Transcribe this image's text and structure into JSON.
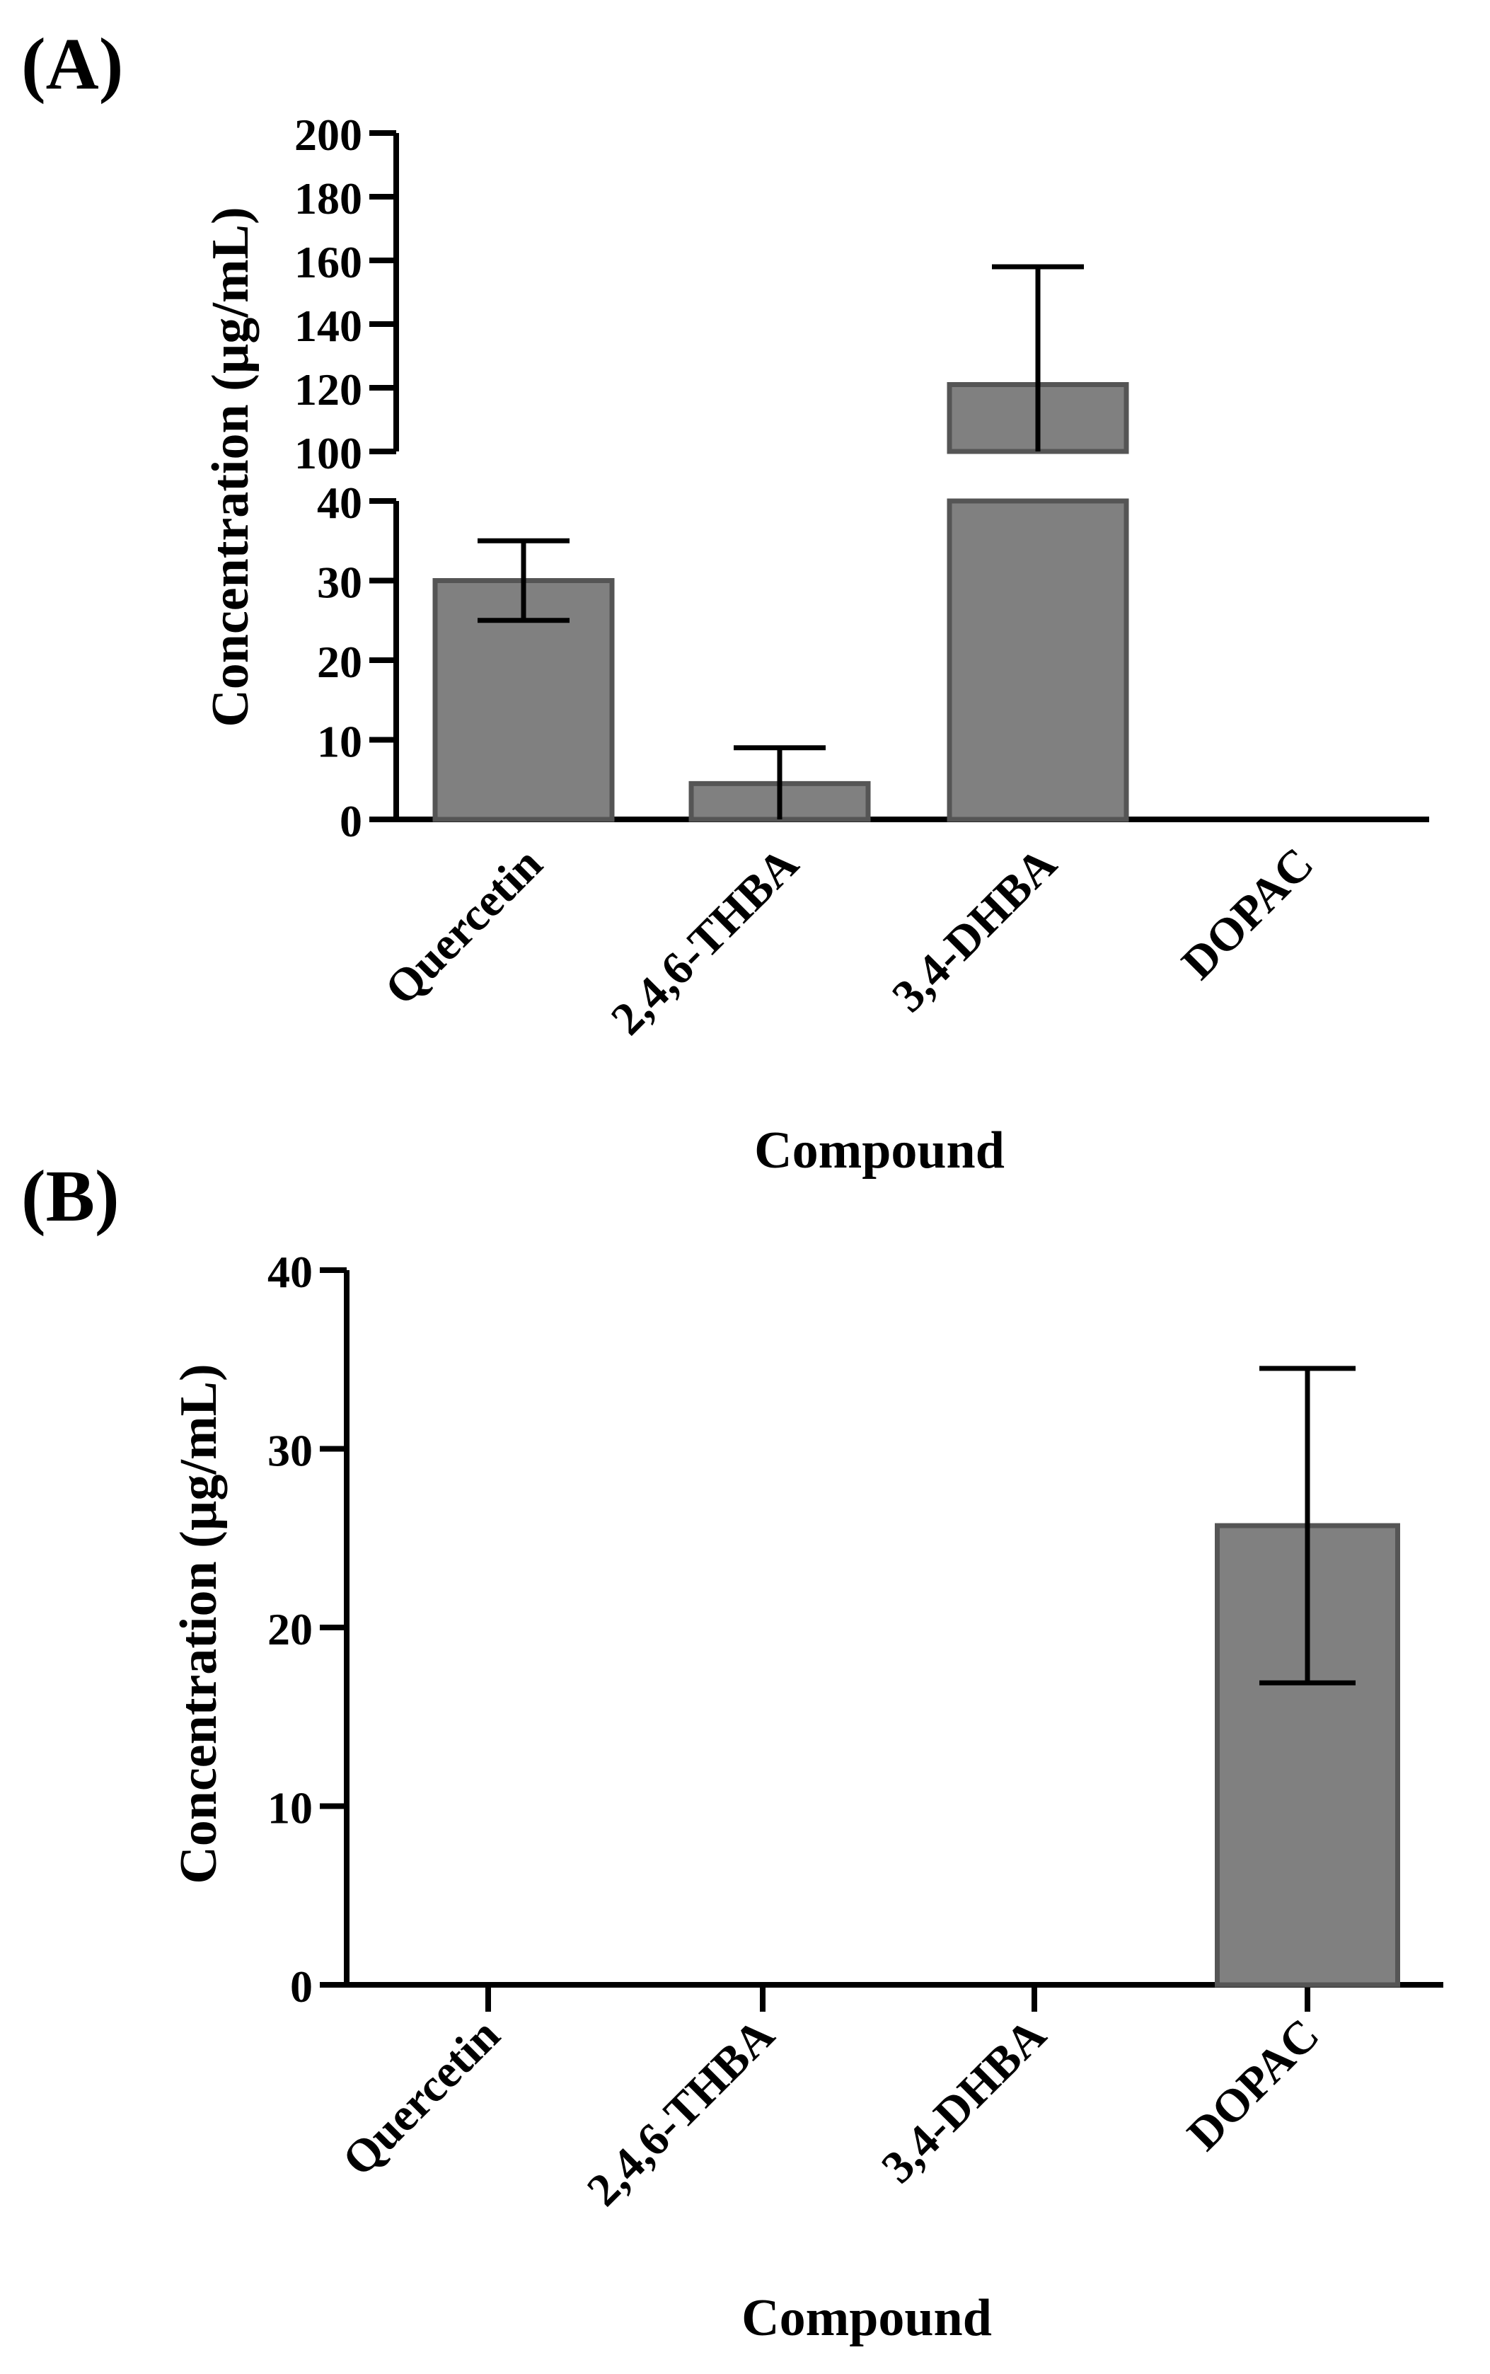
{
  "figure": {
    "panel_a_label": "(A)",
    "panel_b_label": "(B)"
  },
  "chart_data": [
    {
      "type": "bar",
      "panel": "(A)",
      "title": "",
      "xlabel": "Compound",
      "ylabel": "Concentration (µg/mL)",
      "categories": [
        "Quercetin",
        "2,4,6-THBA",
        "3,4-DHBA",
        "DOPAC"
      ],
      "values": [
        30,
        4.5,
        121,
        0
      ],
      "error_upper": [
        35,
        9,
        158,
        0
      ],
      "error_lower": [
        25,
        0,
        100,
        0
      ],
      "broken_axis": true,
      "y_segments": [
        {
          "range": [
            0,
            40
          ],
          "ticks": [
            "0",
            "10",
            "20",
            "30",
            "40"
          ]
        },
        {
          "range": [
            100,
            200
          ],
          "ticks": [
            "100",
            "120",
            "140",
            "160",
            "180",
            "200"
          ]
        }
      ],
      "grid": false,
      "legend": "none"
    },
    {
      "type": "bar",
      "panel": "(B)",
      "title": "",
      "xlabel": "Compound",
      "ylabel": "Concentration (µg/mL)",
      "categories": [
        "Quercetin",
        "2,4,6-THBA",
        "3,4-DHBA",
        "DOPAC"
      ],
      "values": [
        0,
        0,
        0,
        25.7
      ],
      "error_upper": [
        0,
        0,
        0,
        34.5
      ],
      "error_lower": [
        0,
        0,
        0,
        16.9
      ],
      "ylim": [
        0,
        40
      ],
      "yticks": [
        "0",
        "10",
        "20",
        "30",
        "40"
      ],
      "grid": false,
      "legend": "none"
    }
  ]
}
